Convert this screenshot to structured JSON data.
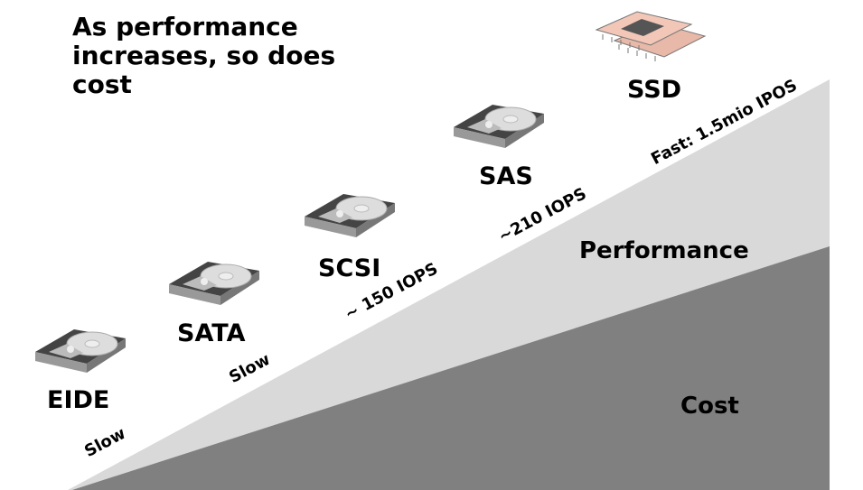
{
  "title": "As performance increases, so does cost",
  "drives": [
    {
      "label": "EIDE",
      "icon": "hard-drive-icon"
    },
    {
      "label": "SATA",
      "icon": "hard-drive-icon"
    },
    {
      "label": "SCSI",
      "icon": "hard-drive-icon"
    },
    {
      "label": "SAS",
      "icon": "hard-drive-icon"
    },
    {
      "label": "SSD",
      "icon": "chip-icon"
    }
  ],
  "speed_labels": [
    "Slow",
    "Slow",
    "~ 150 IOPS",
    "~210 IOPS",
    "Fast: 1.5mio IPOS"
  ],
  "areas": {
    "performance": "Performance",
    "cost": "Cost"
  },
  "colors": {
    "performance": "#d9d9d9",
    "cost": "#808080",
    "ssd_chip": "#f2c7b8"
  }
}
